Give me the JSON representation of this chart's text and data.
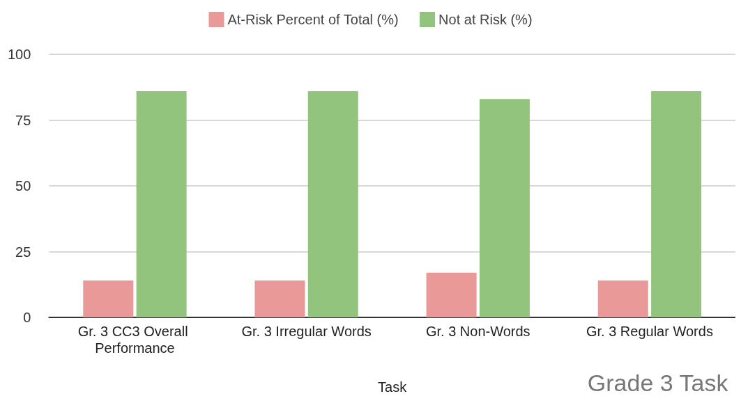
{
  "chart_data": {
    "type": "bar",
    "xlabel": "Task",
    "categories": [
      "Gr. 3 CC3 Overall Performance",
      "Gr. 3 Irregular Words",
      "Gr. 3 Non-Words",
      "Gr. 3 Regular Words"
    ],
    "series": [
      {
        "name": "At-Risk Percent of Total (%)",
        "color": "#ea9999",
        "values": [
          14,
          14,
          17,
          14
        ]
      },
      {
        "name": "Not at Risk (%)",
        "color": "#93c47d",
        "values": [
          86,
          86,
          83,
          86
        ]
      }
    ],
    "ylim": [
      0,
      100
    ],
    "yticks": [
      0,
      25,
      50,
      75,
      100
    ],
    "grid": "y",
    "legend": "top",
    "annotations": [
      "Grade 3 Task"
    ]
  }
}
